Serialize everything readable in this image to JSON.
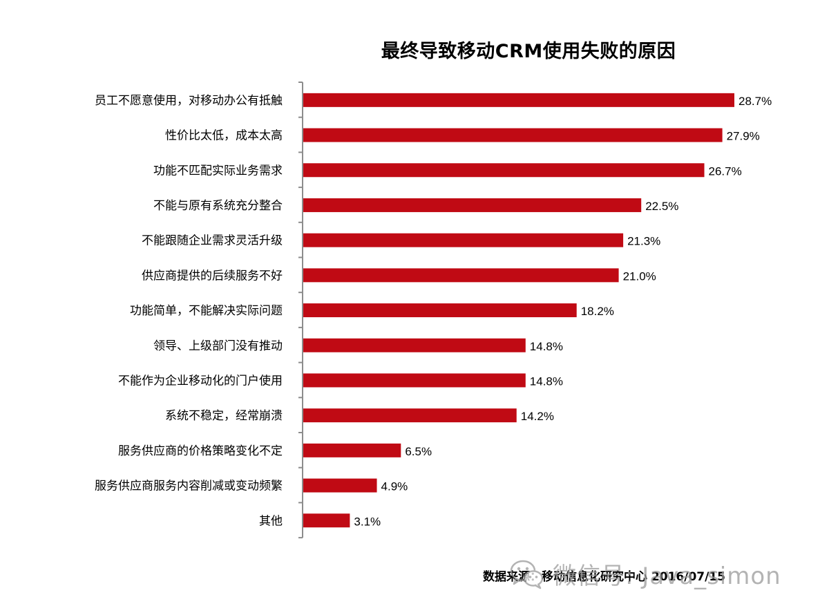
{
  "chart_data": {
    "type": "bar",
    "orientation": "horizontal",
    "title": "最终导致移动CRM使用失败的原因",
    "categories": [
      "员工不愿意使用，对移动办公有抵触",
      "性价比太低，成本太高",
      "功能不匹配实际业务需求",
      "不能与原有系统充分整合",
      "不能跟随企业需求灵活升级",
      "供应商提供的后续服务不好",
      "功能简单，不能解决实际问题",
      "领导、上级部门没有推动",
      "不能作为企业移动化的门户使用",
      "系统不稳定，经常崩溃",
      "服务供应商的价格策略变化不定",
      "服务供应商服务内容削减或变动频繁",
      "其他"
    ],
    "values": [
      28.7,
      27.9,
      26.7,
      22.5,
      21.3,
      21.0,
      18.2,
      14.8,
      14.8,
      14.2,
      6.5,
      4.9,
      3.1
    ],
    "value_labels": [
      "28.7%",
      "27.9%",
      "26.7%",
      "22.5%",
      "21.3%",
      "21.0%",
      "18.2%",
      "14.8%",
      "14.8%",
      "14.2%",
      "6.5%",
      "4.9%",
      "3.1%"
    ],
    "xlim": [
      0,
      30
    ],
    "grid": false,
    "colors": {
      "bar": "#c00a14",
      "axis": "#8c8c8c"
    }
  },
  "footer": {
    "source": "数据来源：移动信息化研究中心 2016/07/15"
  },
  "watermark": {
    "text": "微信号: Java_simon",
    "icon": "wechat-icon"
  }
}
